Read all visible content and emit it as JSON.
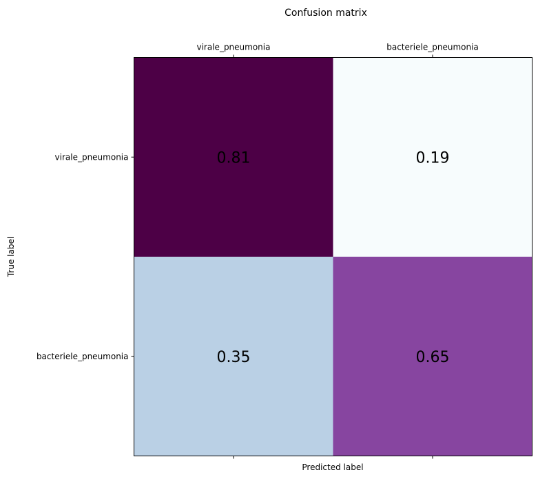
{
  "chart_data": {
    "type": "heatmap",
    "title": "Confusion matrix",
    "xlabel": "Predicted label",
    "ylabel": "True label",
    "x_categories": [
      "virale_pneumonia",
      "bacteriele_pneumonia"
    ],
    "y_categories": [
      "virale_pneumonia",
      "bacteriele_pneumonia"
    ],
    "values": [
      [
        0.81,
        0.19
      ],
      [
        0.35,
        0.65
      ]
    ],
    "value_labels": [
      [
        "0.81",
        "0.19"
      ],
      [
        "0.35",
        "0.65"
      ]
    ],
    "colormap": "BuPu",
    "cell_colors": [
      [
        "#4d0046",
        "#f7fcfd"
      ],
      [
        "#bad0e5",
        "#8745a0"
      ]
    ],
    "colorbar": false,
    "grid": false,
    "x_tick_position": "top"
  }
}
